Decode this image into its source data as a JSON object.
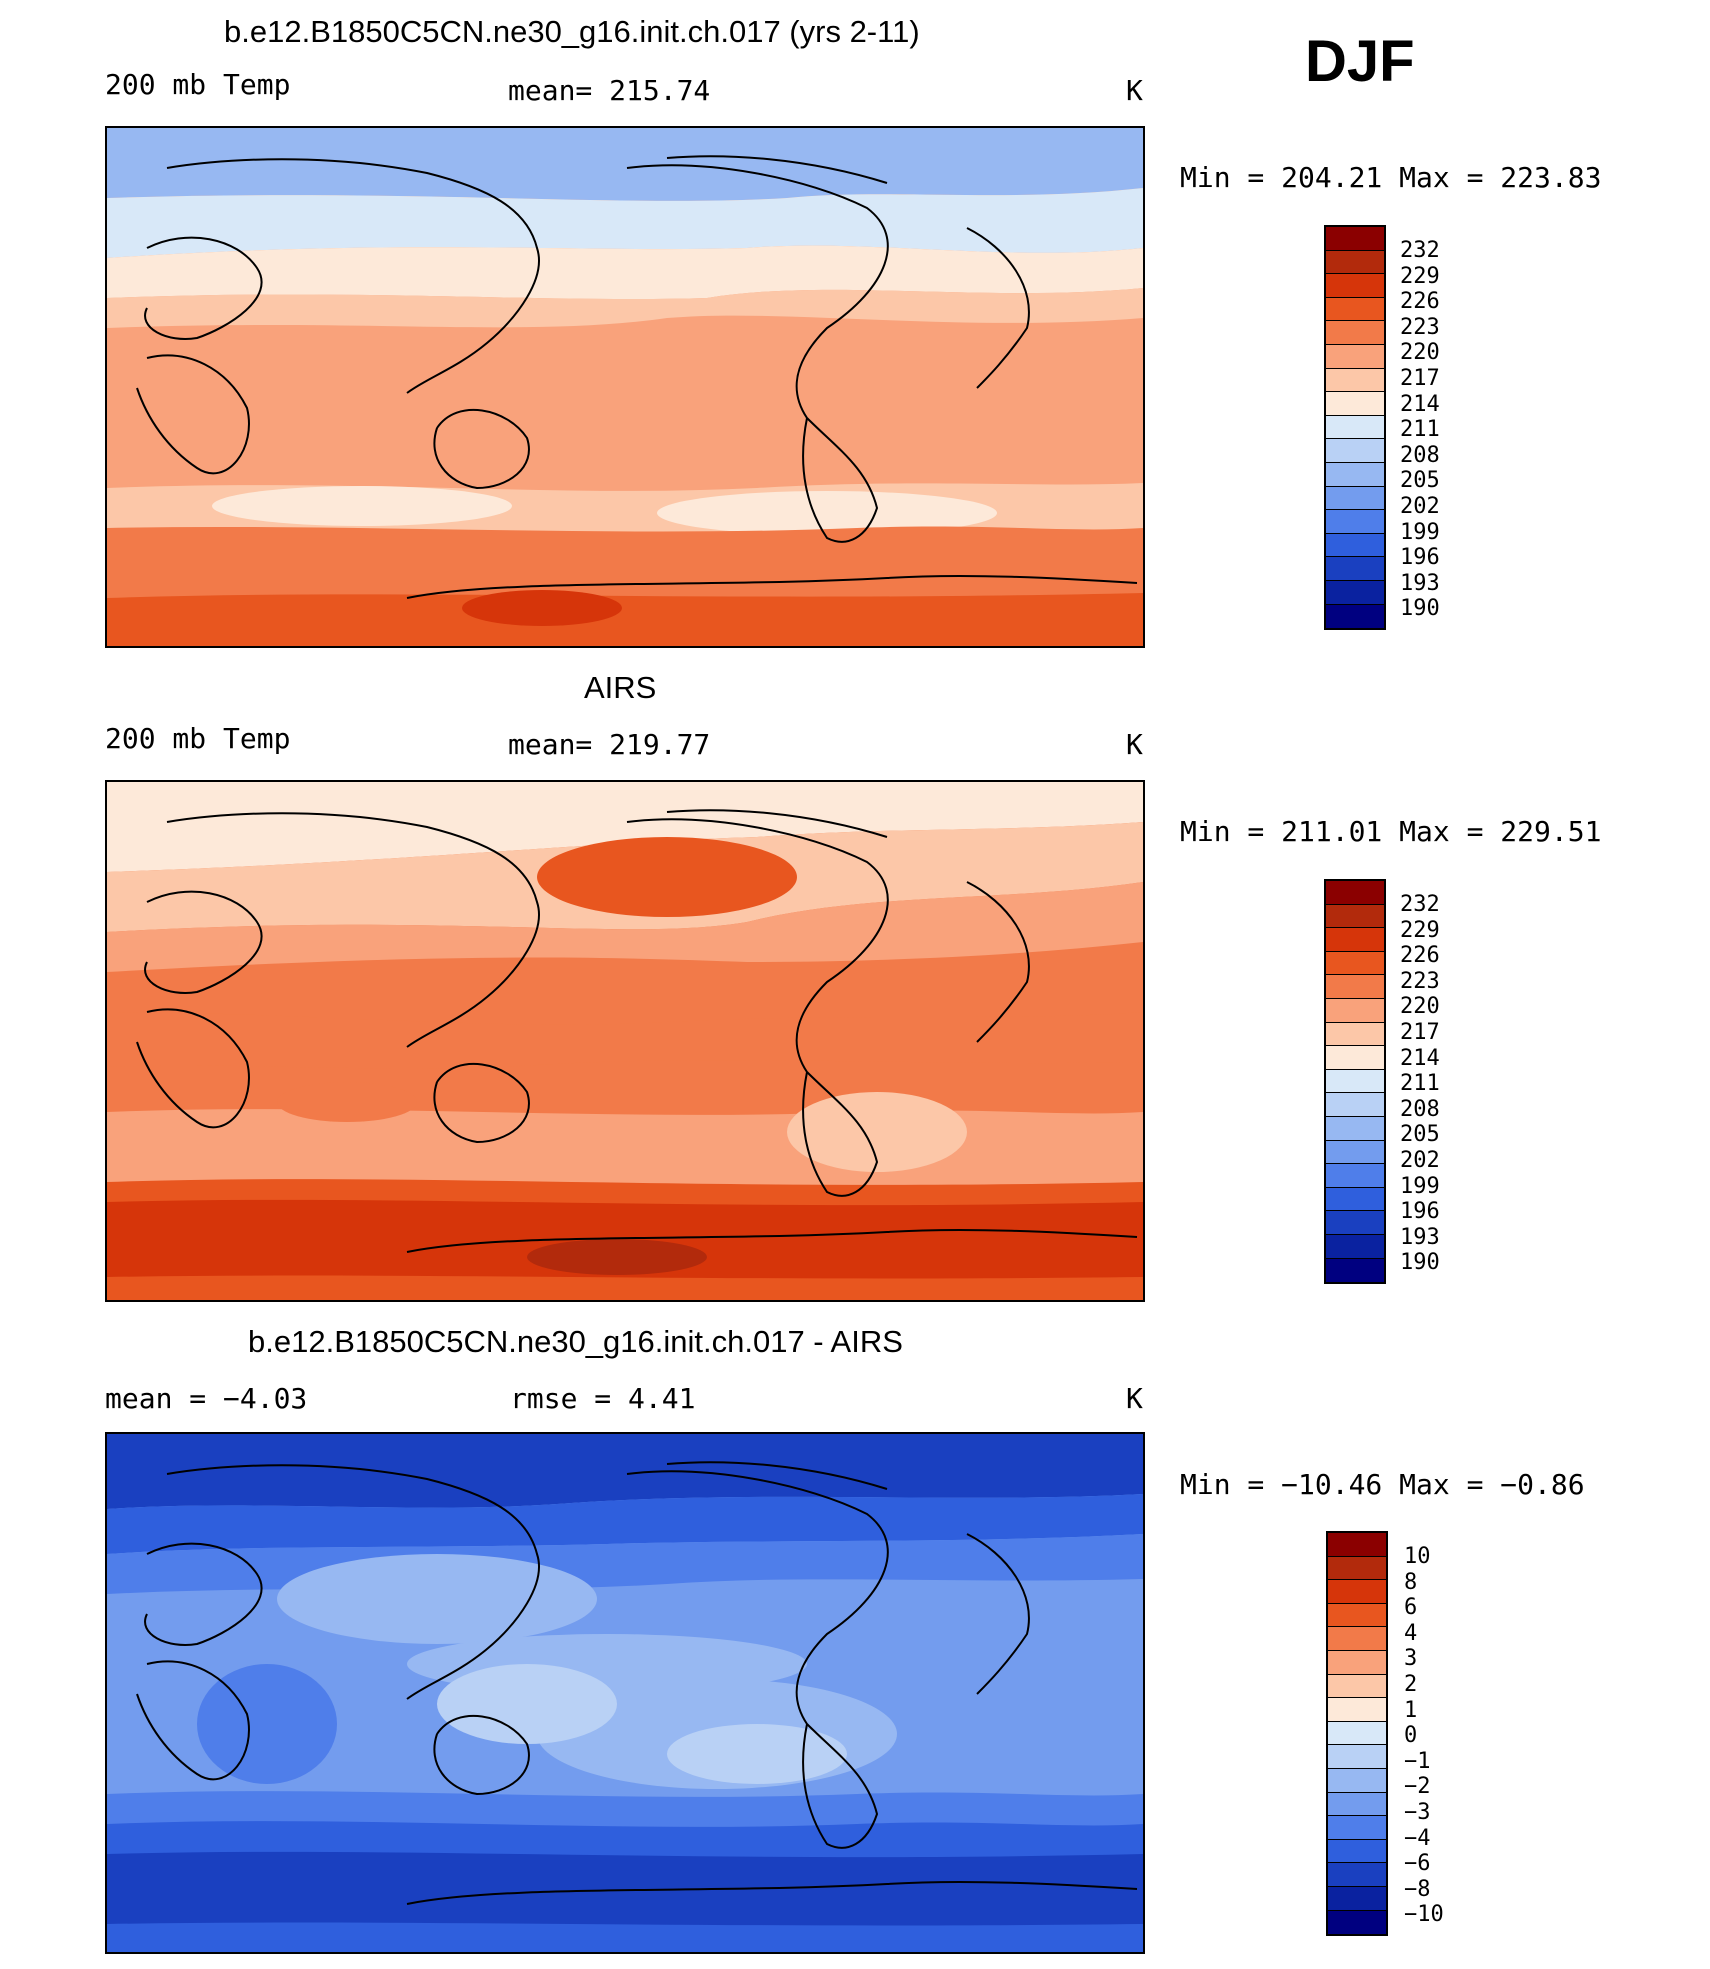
{
  "season": "DJF",
  "panels": [
    {
      "id": "model",
      "title": "b.e12.B1850C5CN.ne30_g16.init.ch.017 (yrs 2-11)",
      "left_label": "200 mb Temp",
      "center_label": "mean=  215.74",
      "units": "K",
      "minmax": "Min  =  204.21  Max  =  223.83",
      "colorbar_labels": [
        "232",
        "229",
        "226",
        "223",
        "220",
        "217",
        "214",
        "211",
        "208",
        "205",
        "202",
        "199",
        "196",
        "193",
        "190"
      ],
      "colorbar_colors": [
        "#8b0000",
        "#b22a0c",
        "#d6350a",
        "#e8561f",
        "#f27a49",
        "#f9a27b",
        "#fcc7a8",
        "#fde9d9",
        "#d8e8f8",
        "#b9d1f5",
        "#97b8f2",
        "#739cee",
        "#4f7eea",
        "#2f5fdd",
        "#1a40c0",
        "#0a22a0",
        "#000080"
      ]
    },
    {
      "id": "obs",
      "title": "AIRS",
      "left_label": "200 mb Temp",
      "center_label": "mean=  219.77",
      "units": "K",
      "minmax": "Min  =  211.01  Max  =  229.51",
      "colorbar_labels": [
        "232",
        "229",
        "226",
        "223",
        "220",
        "217",
        "214",
        "211",
        "208",
        "205",
        "202",
        "199",
        "196",
        "193",
        "190"
      ],
      "colorbar_colors": [
        "#8b0000",
        "#b22a0c",
        "#d6350a",
        "#e8561f",
        "#f27a49",
        "#f9a27b",
        "#fcc7a8",
        "#fde9d9",
        "#d8e8f8",
        "#b9d1f5",
        "#97b8f2",
        "#739cee",
        "#4f7eea",
        "#2f5fdd",
        "#1a40c0",
        "#0a22a0",
        "#000080"
      ]
    },
    {
      "id": "diff",
      "title": "b.e12.B1850C5CN.ne30_g16.init.ch.017 - AIRS",
      "left_label": "mean  =     −4.03",
      "center_label": "rmse  =      4.41",
      "units": "K",
      "minmax": "Min  =  −10.46  Max  =    −0.86",
      "colorbar_labels": [
        "10",
        "8",
        "6",
        "4",
        "3",
        "2",
        "1",
        "0",
        "−1",
        "−2",
        "−3",
        "−4",
        "−6",
        "−8",
        "−10"
      ],
      "colorbar_colors": [
        "#8b0000",
        "#b22a0c",
        "#d6350a",
        "#e8561f",
        "#f27a49",
        "#f9a27b",
        "#fcc7a8",
        "#fde9d9",
        "#d8e8f8",
        "#b9d1f5",
        "#97b8f2",
        "#739cee",
        "#4f7eea",
        "#2f5fdd",
        "#1a40c0",
        "#0a22a0",
        "#000080"
      ]
    }
  ]
}
